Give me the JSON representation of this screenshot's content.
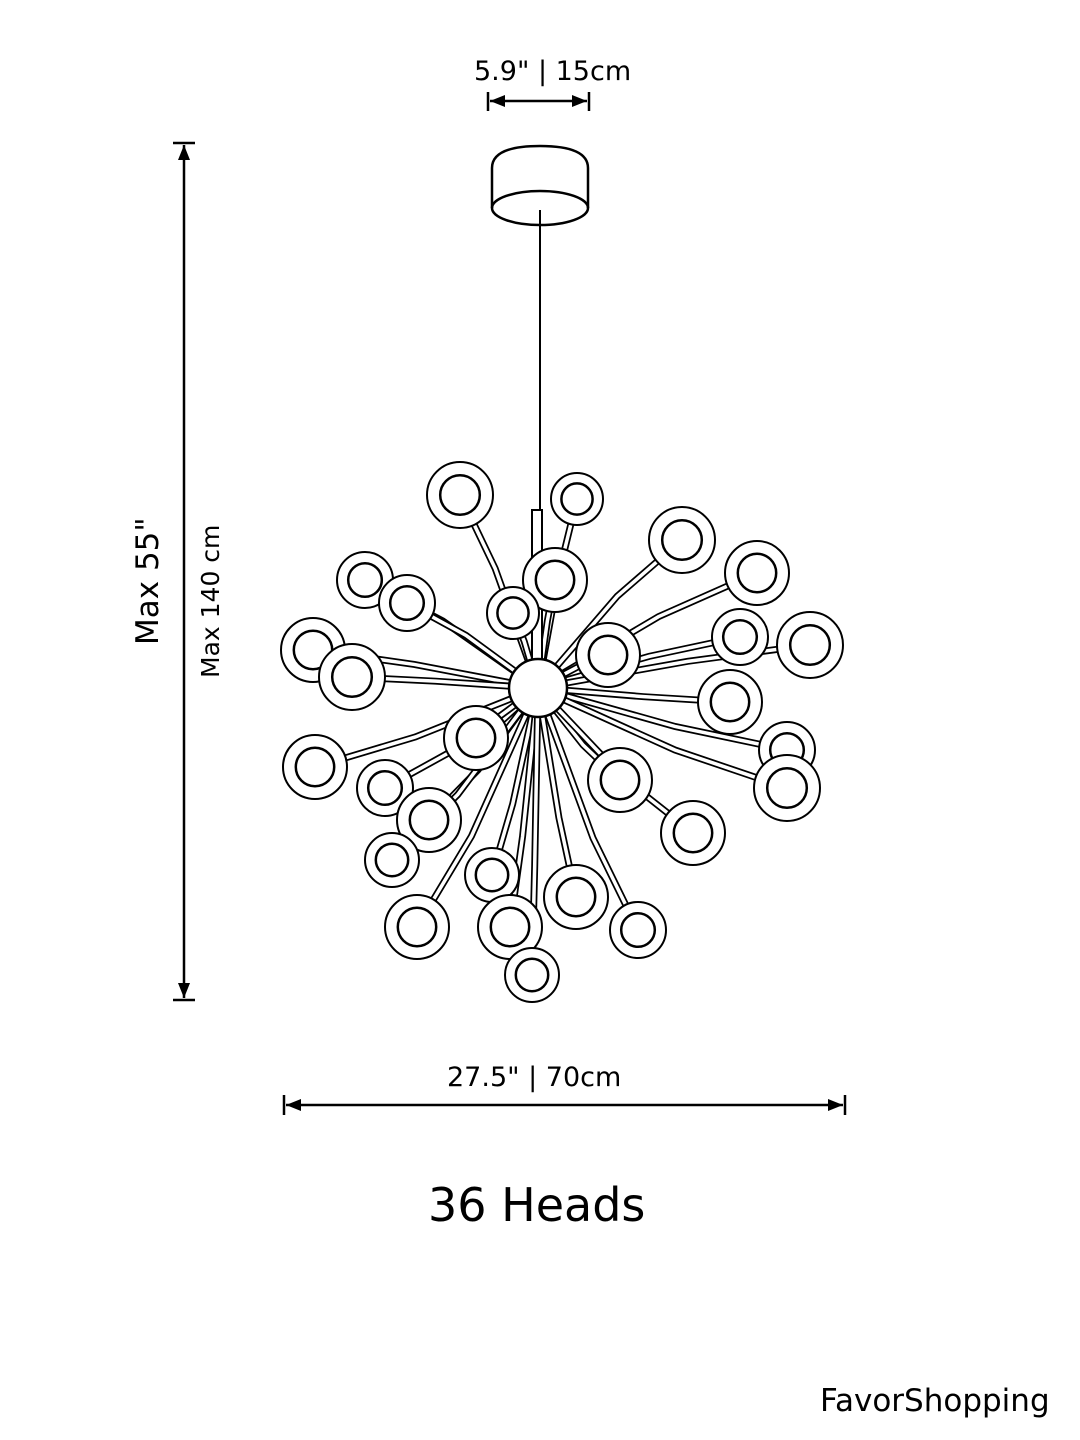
{
  "diagram": {
    "canopy_dimension": "5.9\" | 15cm",
    "height_inches": "Max  55\"",
    "height_cm": "Max 140 cm",
    "width_dimension": "27.5\" | 70cm",
    "title": "36 Heads",
    "brand": "FavorShopping",
    "line_color": "#000000",
    "background_color": "#ffffff"
  }
}
